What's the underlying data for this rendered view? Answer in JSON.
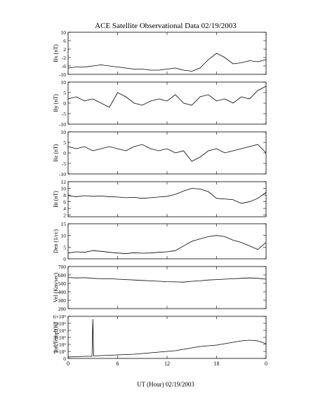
{
  "figure": {
    "title": "ACE Satellite Observational Data   02/19/2003",
    "xlabel": "UT (Hour)  02/19/2003"
  },
  "colors": {
    "background": "#ffffff",
    "line": "#000000",
    "axis": "#000000"
  },
  "chart_data": [
    {
      "type": "line",
      "id": "bx",
      "ylabel": "Bx (nT)",
      "ylim": [
        -10,
        10
      ],
      "yticks": [
        "-10",
        "-6",
        "-2",
        "2",
        "6",
        "10"
      ],
      "ytick_values": [
        -10,
        -6,
        -2,
        2,
        6,
        10
      ],
      "xlim": [
        0,
        24
      ],
      "xticks": [
        "0",
        "6",
        "12",
        "18",
        "0"
      ],
      "xtick_values": [
        0,
        6,
        12,
        18,
        24
      ],
      "series": [
        {
          "x": [
            0,
            1,
            2,
            3,
            4,
            5,
            6,
            7,
            8,
            9,
            10,
            11,
            12,
            13,
            14,
            15,
            16,
            17,
            18,
            19,
            20,
            21,
            22,
            23,
            24
          ],
          "y": [
            -7,
            -6.5,
            -6.5,
            -6,
            -5.5,
            -6,
            -6.5,
            -7,
            -7.5,
            -7.5,
            -8,
            -8,
            -7.5,
            -7,
            -8,
            -8.5,
            -7,
            -3,
            0,
            -2,
            -5,
            -4.5,
            -3.5,
            -4,
            -3
          ]
        }
      ]
    },
    {
      "type": "line",
      "id": "by",
      "ylabel": "By (nT)",
      "ylim": [
        -10,
        10
      ],
      "yticks": [
        "-10",
        "-5",
        "0",
        "5",
        "10"
      ],
      "ytick_values": [
        -10,
        -5,
        0,
        5,
        10
      ],
      "xlim": [
        0,
        24
      ],
      "xticks": [
        "0",
        "6",
        "12",
        "18",
        "0"
      ],
      "xtick_values": [
        0,
        6,
        12,
        18,
        24
      ],
      "series": [
        {
          "x": [
            0,
            1,
            2,
            3,
            4,
            5,
            6,
            7,
            8,
            9,
            10,
            11,
            12,
            13,
            14,
            15,
            16,
            17,
            18,
            19,
            20,
            21,
            22,
            23,
            24
          ],
          "y": [
            2,
            3,
            1,
            2,
            0,
            -2,
            5,
            3,
            0,
            -1,
            1,
            2,
            1,
            4,
            0,
            -1,
            3,
            4,
            1,
            2,
            0,
            3,
            2,
            6,
            8
          ]
        }
      ]
    },
    {
      "type": "line",
      "id": "bz",
      "ylabel": "Bz (nT)",
      "ylim": [
        -10,
        10
      ],
      "yticks": [
        "-10",
        "-5",
        "0",
        "5",
        "10"
      ],
      "ytick_values": [
        -10,
        -5,
        0,
        5,
        10
      ],
      "xlim": [
        0,
        24
      ],
      "xticks": [
        "0",
        "6",
        "12",
        "18",
        "0"
      ],
      "xtick_values": [
        0,
        6,
        12,
        18,
        24
      ],
      "series": [
        {
          "x": [
            0,
            1,
            2,
            3,
            4,
            5,
            6,
            7,
            8,
            9,
            10,
            11,
            12,
            13,
            14,
            15,
            16,
            17,
            18,
            19,
            20,
            21,
            22,
            23,
            24
          ],
          "y": [
            3,
            2,
            3,
            1,
            2,
            3,
            2,
            1,
            3,
            4,
            2,
            1,
            2,
            0,
            1,
            -4,
            -2,
            1,
            2,
            0,
            1,
            2,
            3,
            4,
            0
          ]
        }
      ]
    },
    {
      "type": "line",
      "id": "bt",
      "ylabel": "Bt (nT)",
      "ylim": [
        1.5,
        12
      ],
      "yticks": [
        "2",
        "4",
        "6",
        "8",
        "10",
        "12"
      ],
      "ytick_values": [
        2,
        4,
        6,
        8,
        10,
        12
      ],
      "xlim": [
        0,
        24
      ],
      "xticks": [
        "0",
        "6",
        "12",
        "18",
        "0"
      ],
      "xtick_values": [
        0,
        6,
        12,
        18,
        24
      ],
      "series": [
        {
          "x": [
            0,
            1,
            2,
            3,
            4,
            5,
            6,
            7,
            8,
            9,
            10,
            11,
            12,
            13,
            14,
            15,
            16,
            17,
            18,
            19,
            20,
            21,
            22,
            23,
            24
          ],
          "y": [
            7.8,
            7.5,
            7.8,
            7.6,
            7.7,
            7.5,
            7.4,
            7.2,
            7.3,
            7.0,
            7.2,
            7.4,
            7.6,
            8.2,
            9.2,
            10.0,
            9.8,
            9.0,
            7.0,
            6.8,
            6.6,
            5.5,
            6.0,
            7.0,
            8.8
          ]
        }
      ]
    },
    {
      "type": "line",
      "id": "den",
      "ylabel": "Den (1/cc)",
      "ylim": [
        0,
        15
      ],
      "yticks": [
        "0",
        "5",
        "10",
        "15"
      ],
      "ytick_values": [
        0,
        5,
        10,
        15
      ],
      "xlim": [
        0,
        24
      ],
      "xticks": [
        "0",
        "6",
        "12",
        "18",
        "0"
      ],
      "xtick_values": [
        0,
        6,
        12,
        18,
        24
      ],
      "series": [
        {
          "x": [
            0,
            1,
            2,
            3,
            4,
            5,
            6,
            7,
            8,
            9,
            10,
            11,
            12,
            13,
            14,
            15,
            16,
            17,
            18,
            19,
            20,
            21,
            22,
            23,
            24
          ],
          "y": [
            2.5,
            3,
            2.8,
            3.5,
            3.2,
            2.8,
            2.5,
            2.2,
            2.6,
            2.4,
            2.5,
            2.8,
            3.0,
            3.5,
            5.5,
            7.5,
            8.5,
            9.5,
            10.0,
            9.5,
            8.0,
            7.0,
            5.5,
            4.0,
            7.0
          ]
        }
      ]
    },
    {
      "type": "line",
      "id": "vel",
      "ylabel": "Vel (Km/sec)",
      "ylim": [
        200,
        700
      ],
      "yticks": [
        "200",
        "300",
        "400",
        "500",
        "600",
        "700"
      ],
      "ytick_values": [
        200,
        300,
        400,
        500,
        600,
        700
      ],
      "xlim": [
        0,
        24
      ],
      "xticks": [
        "0",
        "6",
        "12",
        "18",
        "0"
      ],
      "xtick_values": [
        0,
        6,
        12,
        18,
        24
      ],
      "series": [
        {
          "x": [
            0,
            1,
            2,
            3,
            4,
            5,
            6,
            7,
            8,
            9,
            10,
            11,
            12,
            13,
            14,
            15,
            16,
            17,
            18,
            19,
            20,
            21,
            22,
            23,
            24
          ],
          "y": [
            570,
            565,
            568,
            560,
            555,
            555,
            550,
            545,
            540,
            535,
            530,
            525,
            520,
            518,
            515,
            525,
            530,
            540,
            545,
            550,
            555,
            560,
            565,
            560,
            550
          ]
        }
      ]
    },
    {
      "type": "line",
      "id": "iontemp",
      "ylabel": "Ion Temp (K)",
      "ylim": [
        0,
        600000
      ],
      "yticks": [
        "0",
        "1×10⁵",
        "2×10⁵",
        "3×10⁵",
        "4×10⁵",
        "5×10⁵",
        "6×10⁵"
      ],
      "ytick_values": [
        0,
        100000,
        200000,
        300000,
        400000,
        500000,
        600000
      ],
      "xlim": [
        0,
        24
      ],
      "xticks": [
        "0",
        "6",
        "12",
        "18",
        "0"
      ],
      "xtick_values": [
        0,
        6,
        12,
        18,
        24
      ],
      "series": [
        {
          "x": [
            0,
            1,
            2,
            2.9,
            3.0,
            3.1,
            4,
            5,
            6,
            7,
            8,
            9,
            10,
            11,
            12,
            13,
            14,
            15,
            16,
            17,
            18,
            19,
            20,
            21,
            22,
            23,
            24
          ],
          "y": [
            20000,
            25000,
            30000,
            30000,
            560000,
            35000,
            40000,
            45000,
            50000,
            55000,
            60000,
            70000,
            80000,
            90000,
            100000,
            110000,
            130000,
            150000,
            170000,
            180000,
            190000,
            210000,
            230000,
            250000,
            260000,
            250000,
            210000
          ]
        }
      ]
    }
  ]
}
